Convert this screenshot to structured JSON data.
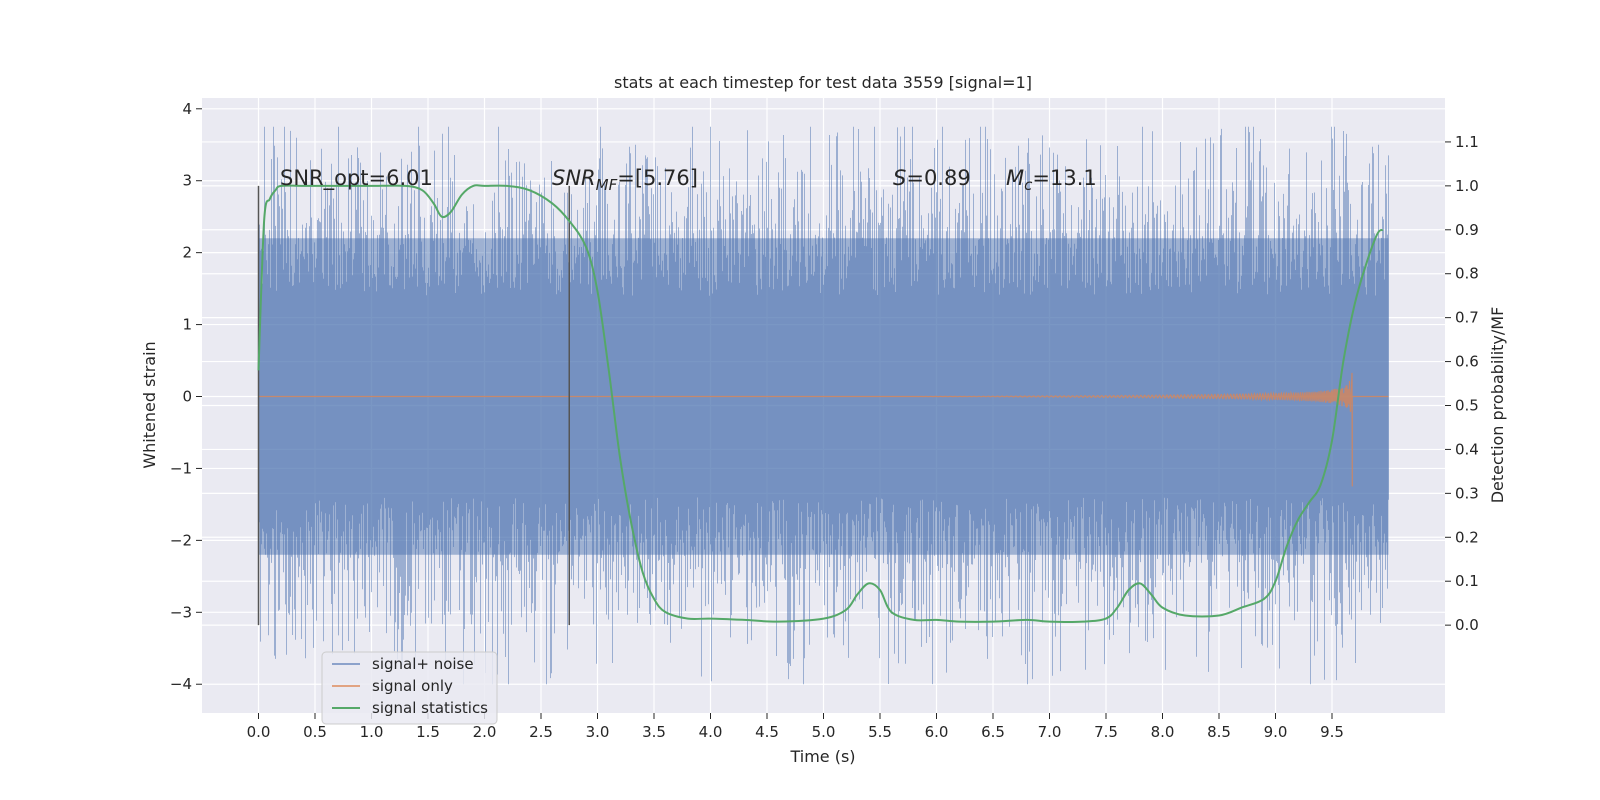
{
  "chart_data": {
    "type": "line",
    "title": "stats at each timestep for test data 3559 [signal=1]",
    "xlabel": "Time (s)",
    "ylabel_left": "Whitened strain",
    "ylabel_right": "Detection probability/MF",
    "xlim": [
      -0.5,
      10.5
    ],
    "ylim_left": [
      -4.4,
      4.15
    ],
    "ylim_right": [
      -0.2,
      1.2
    ],
    "x_ticks": [
      "0.0",
      "0.5",
      "1.0",
      "1.5",
      "2.0",
      "2.5",
      "3.0",
      "3.5",
      "4.0",
      "4.5",
      "5.0",
      "5.5",
      "6.0",
      "6.5",
      "7.0",
      "7.5",
      "8.0",
      "8.5",
      "9.0",
      "9.5"
    ],
    "y_ticks_left": [
      "4",
      "3",
      "2",
      "1",
      "0",
      "−1",
      "−2",
      "−3",
      "−4"
    ],
    "y_ticks_right": [
      "1.1",
      "1.0",
      "0.9",
      "0.8",
      "0.7",
      "0.6",
      "0.5",
      "0.4",
      "0.3",
      "0.2",
      "0.1",
      "0.0"
    ],
    "grid": true,
    "legend_position": "lower-left",
    "annotations": {
      "snr_opt": "SNR_opt=6.01",
      "snr_mf_main": "SNR",
      "snr_mf_sub": "MF",
      "snr_mf_value": "=[5.76]",
      "s_symbol": "S",
      "s_value": "=0.89",
      "mc_symbol": "M",
      "mc_sub": "c",
      "mc_value": "=13.1"
    },
    "vertical_markers_x": [
      0.0,
      2.75
    ],
    "series": [
      {
        "name": "signal+ noise",
        "color": "#4c72b0",
        "axis": "left",
        "kind": "noise",
        "x_range": [
          0.0,
          10.0
        ],
        "typical_range": [
          -2.2,
          2.2
        ],
        "extreme_range": [
          -4.05,
          3.75
        ]
      },
      {
        "name": "signal only",
        "color": "#dd8452",
        "axis": "left",
        "kind": "chirp",
        "x_range": [
          0.0,
          9.68
        ],
        "peak_amplitude": 0.85
      },
      {
        "name": "signal statistics",
        "color": "#55a868",
        "axis": "right",
        "x": [
          0.0,
          0.05,
          0.1,
          0.15,
          0.2,
          0.4,
          0.8,
          1.0,
          1.3,
          1.45,
          1.55,
          1.62,
          1.7,
          1.8,
          1.9,
          2.0,
          2.2,
          2.4,
          2.6,
          2.75,
          2.9,
          3.0,
          3.1,
          3.2,
          3.3,
          3.4,
          3.5,
          3.6,
          3.8,
          4.0,
          4.3,
          4.6,
          5.0,
          5.2,
          5.3,
          5.4,
          5.5,
          5.6,
          5.8,
          6.0,
          6.2,
          6.5,
          6.8,
          7.0,
          7.3,
          7.5,
          7.6,
          7.7,
          7.8,
          7.9,
          8.0,
          8.2,
          8.5,
          8.7,
          8.9,
          9.0,
          9.1,
          9.2,
          9.3,
          9.4,
          9.5,
          9.6,
          9.7,
          9.8,
          9.9,
          9.95
        ],
        "y": [
          0.58,
          0.92,
          0.97,
          0.99,
          1.0,
          1.0,
          1.0,
          1.0,
          1.0,
          0.99,
          0.96,
          0.93,
          0.94,
          0.98,
          1.0,
          1.0,
          1.0,
          0.99,
          0.96,
          0.92,
          0.86,
          0.76,
          0.58,
          0.38,
          0.23,
          0.12,
          0.06,
          0.03,
          0.015,
          0.015,
          0.012,
          0.008,
          0.015,
          0.035,
          0.07,
          0.095,
          0.08,
          0.03,
          0.012,
          0.012,
          0.008,
          0.008,
          0.012,
          0.008,
          0.008,
          0.015,
          0.04,
          0.08,
          0.095,
          0.07,
          0.04,
          0.022,
          0.022,
          0.04,
          0.06,
          0.1,
          0.18,
          0.24,
          0.28,
          0.32,
          0.42,
          0.6,
          0.73,
          0.82,
          0.89,
          0.9
        ]
      }
    ]
  }
}
